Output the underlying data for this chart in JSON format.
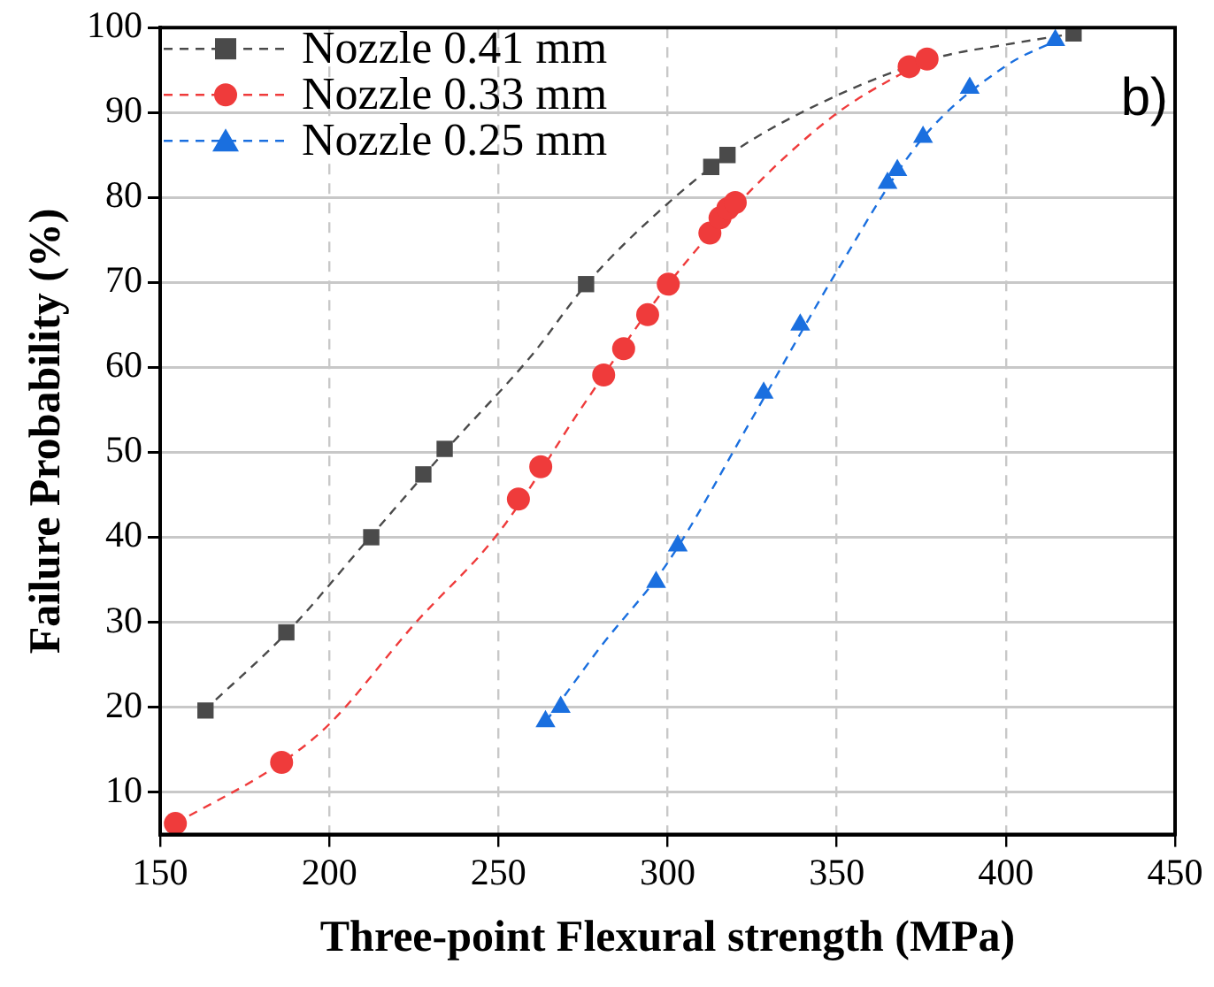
{
  "chart_data": {
    "type": "scatter",
    "xlabel": "Three-point Flexural strength (MPa)",
    "ylabel": "Failure Probability (%)",
    "xlim": [
      150,
      450
    ],
    "xticks": [
      150,
      200,
      250,
      300,
      350,
      400,
      450
    ],
    "ylim": [
      5,
      100
    ],
    "yticks": [
      10,
      20,
      30,
      40,
      50,
      60,
      70,
      80,
      90,
      100
    ],
    "grid": true,
    "legend": "top left",
    "annotations": [
      "b)"
    ],
    "series": [
      {
        "name": "Nozzle 0.41 mm",
        "marker": "square",
        "color": "#4a4a4a",
        "x": [
          163.4,
          187.3,
          212.4,
          227.8,
          234.1,
          275.9,
          312.9,
          317.7,
          420
        ],
        "values": [
          19.6,
          28.8,
          40.0,
          47.4,
          50.4,
          69.8,
          83.6,
          85.0,
          99.3
        ]
      },
      {
        "name": "Nozzle 0.33 mm",
        "marker": "circle",
        "color": "#ef3b3b",
        "x": [
          154.5,
          185.9,
          255.9,
          262.5,
          281.1,
          287,
          294.1,
          300.2,
          312.5,
          315.5,
          317.8,
          320,
          371.4,
          376.7
        ],
        "values": [
          6.3,
          13.5,
          44.5,
          48.3,
          59.1,
          62.2,
          66.2,
          69.8,
          75.8,
          77.6,
          78.7,
          79.4,
          95.4,
          96.3
        ]
      },
      {
        "name": "Nozzle 0.25 mm",
        "marker": "triangle",
        "color": "#1a6fdf",
        "x": [
          263.9,
          268.4,
          296.6,
          303.0,
          328.4,
          339.2,
          365,
          367.9,
          375.5,
          389.3,
          414.6
        ],
        "values": [
          18.3,
          20.0,
          34.7,
          39.0,
          57.0,
          65.0,
          81.7,
          83.2,
          87.1,
          92.9,
          98.5
        ]
      },
      {
        "type": "line",
        "marker": "none",
        "line_style": "dashed",
        "color": "#4a4a4a",
        "x": [
          163,
          188,
          212,
          235,
          260,
          276,
          297,
          318,
          350,
          380,
          400,
          420
        ],
        "values": [
          19.6,
          29,
          40,
          50.5,
          61.5,
          69.8,
          78.2,
          85,
          92,
          96.5,
          98,
          99.3
        ]
      },
      {
        "type": "line",
        "marker": "none",
        "line_style": "dashed",
        "color": "#ef3b3b",
        "x": [
          154.5,
          186,
          200,
          225,
          250,
          275,
          300,
          325,
          350,
          376.7
        ],
        "values": [
          6.3,
          13.5,
          18,
          29.7,
          40.5,
          55.5,
          69.7,
          81,
          89.9,
          96.3
        ]
      },
      {
        "type": "line",
        "marker": "none",
        "line_style": "dashed",
        "color": "#1a6fdf",
        "x": [
          264,
          280,
          300,
          325,
          350,
          375,
          400,
          415
        ],
        "values": [
          18.3,
          27,
          37,
          54,
          71.3,
          86.8,
          95.5,
          98.5
        ]
      }
    ]
  }
}
